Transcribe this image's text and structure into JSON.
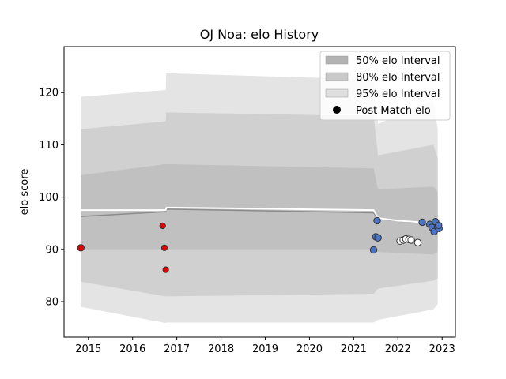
{
  "chart_data": {
    "type": "line",
    "title": "OJ Noa: elo History",
    "xlabel": "",
    "ylabel": "elo score",
    "xlim": [
      2014.45,
      2023.3
    ],
    "ylim": [
      73.2,
      128.8
    ],
    "x_ticks": [
      2015,
      2016,
      2017,
      2018,
      2019,
      2020,
      2021,
      2022,
      2023
    ],
    "y_ticks": [
      80,
      90,
      100,
      110,
      120
    ],
    "grid": false,
    "legend_position": "top-right",
    "legend": [
      {
        "label": "50% elo Interval",
        "swatch": "#b3b3b3"
      },
      {
        "label": "80% elo Interval",
        "swatch": "#c9c9c9"
      },
      {
        "label": "95% elo Interval",
        "swatch": "#dfdfdf"
      },
      {
        "label": "Post Match elo",
        "swatch": "#000000"
      }
    ],
    "colors": {
      "band95": "#e4e4e4",
      "band80": "#d0d0d0",
      "band50": "#c0c0c0",
      "mean_line": "#8c8c8c",
      "white_line": "#ffffff",
      "points_red": "#e00000",
      "points_blue": "#4a74c4",
      "points_white": "#ffffff",
      "point_edge": "#333333"
    },
    "bands": {
      "x": [
        2014.83,
        2016.75,
        2016.76,
        2021.45,
        2021.55,
        2022.8,
        2022.9
      ],
      "p95_upper": [
        119.2,
        120.5,
        123.7,
        122.5,
        114.0,
        118.5,
        113.0
      ],
      "p95_lower": [
        79.0,
        75.9,
        76.0,
        76.0,
        76.5,
        78.5,
        79.5
      ],
      "p80_upper": [
        113.0,
        114.5,
        116.2,
        115.5,
        108.0,
        110.0,
        107.5
      ],
      "p80_lower": [
        83.8,
        81.0,
        81.0,
        81.5,
        82.5,
        84.0,
        84.5
      ],
      "p50_upper": [
        104.2,
        106.3,
        106.3,
        105.5,
        101.5,
        102.0,
        101.0
      ],
      "p50_lower": [
        90.0,
        90.0,
        90.0,
        90.0,
        89.5,
        89.0,
        89.5
      ]
    },
    "mean_line": {
      "x": [
        2014.83,
        2016.75,
        2016.77,
        2021.45,
        2021.55,
        2022.0,
        2022.5,
        2022.9
      ],
      "y": [
        96.3,
        97.2,
        97.7,
        97.0,
        95.8,
        95.5,
        95.0,
        94.5
      ]
    },
    "white_line": {
      "x": [
        2014.83,
        2016.75,
        2016.77,
        2021.45,
        2021.55,
        2022.0,
        2022.5,
        2022.9
      ],
      "y": [
        97.5,
        97.5,
        98.0,
        97.5,
        96.0,
        95.5,
        95.2,
        95.0
      ]
    },
    "series": [
      {
        "kind": "red",
        "points": [
          [
            2014.83,
            90.3
          ],
          [
            2016.68,
            94.5
          ],
          [
            2016.72,
            90.3
          ],
          [
            2016.75,
            86.1
          ]
        ]
      },
      {
        "kind": "blue",
        "points": [
          [
            2021.45,
            89.9
          ],
          [
            2021.5,
            92.4
          ],
          [
            2021.53,
            95.5
          ],
          [
            2021.55,
            92.2
          ],
          [
            2022.55,
            95.2
          ],
          [
            2022.72,
            94.8
          ],
          [
            2022.77,
            94.2
          ],
          [
            2022.82,
            93.4
          ],
          [
            2022.85,
            95.3
          ],
          [
            2022.9,
            94.3
          ],
          [
            2022.93,
            94.0
          ],
          [
            2022.92,
            94.6
          ]
        ]
      },
      {
        "kind": "white",
        "points": [
          [
            2022.05,
            91.6
          ],
          [
            2022.12,
            91.8
          ],
          [
            2022.18,
            92.0
          ],
          [
            2022.25,
            91.9
          ],
          [
            2022.3,
            91.8
          ],
          [
            2022.45,
            91.3
          ]
        ]
      }
    ]
  }
}
